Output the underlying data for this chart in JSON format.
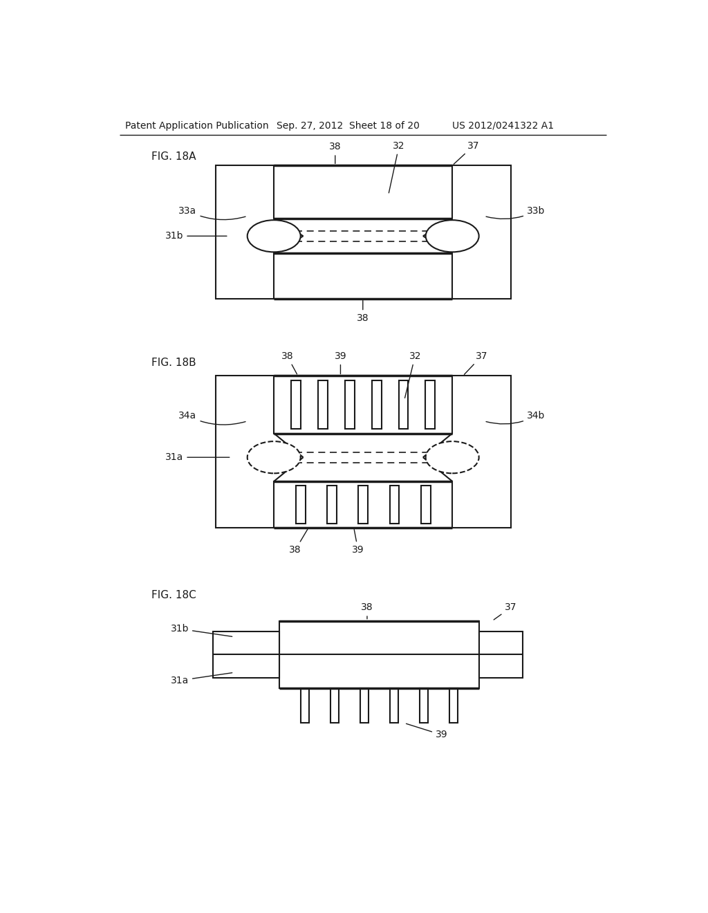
{
  "bg_color": "#ffffff",
  "header_text": "Patent Application Publication",
  "header_date": "Sep. 27, 2012  Sheet 18 of 20",
  "header_patent": "US 2012/0241322 A1",
  "line_color": "#1a1a1a",
  "line_width": 1.5,
  "thick_line": 2.5,
  "font_size_header": 10,
  "font_size_label": 11,
  "font_size_ref": 10
}
